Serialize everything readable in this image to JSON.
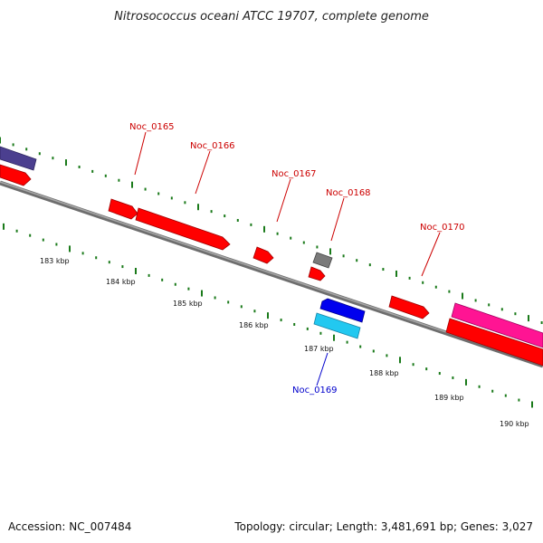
{
  "title": "Nitrosococcus oceani ATCC 19707, complete genome",
  "accession": "Accession: NC_007484",
  "topology": "Topology: circular; Length: 3,481,691 bp; Genes: 3,027",
  "colors": {
    "forward_gene": "#ff0000",
    "forward_gene_alt": "#ff1493",
    "forward_gene_misc": "#7a7a7a",
    "reverse_gene": "#0000ee",
    "reverse_gene_alt": "#22c8f0",
    "left_gene": "#4b3f8f",
    "backbone": "#808080",
    "tick": "#1a7a1a",
    "label_forward": "#cc0000",
    "label_reverse": "#0000cc"
  },
  "scale_labels": [
    "183 kbp",
    "184 kbp",
    "185 kbp",
    "186 kbp",
    "187 kbp",
    "188 kbp",
    "189 kbp",
    "190 kbp"
  ],
  "gene_labels": [
    {
      "name": "Noc_0165",
      "strand": "forward"
    },
    {
      "name": "Noc_0166",
      "strand": "forward"
    },
    {
      "name": "Noc_0167",
      "strand": "forward"
    },
    {
      "name": "Noc_0168",
      "strand": "forward"
    },
    {
      "name": "Noc_0169",
      "strand": "reverse"
    },
    {
      "name": "Noc_0170",
      "strand": "forward"
    }
  ]
}
